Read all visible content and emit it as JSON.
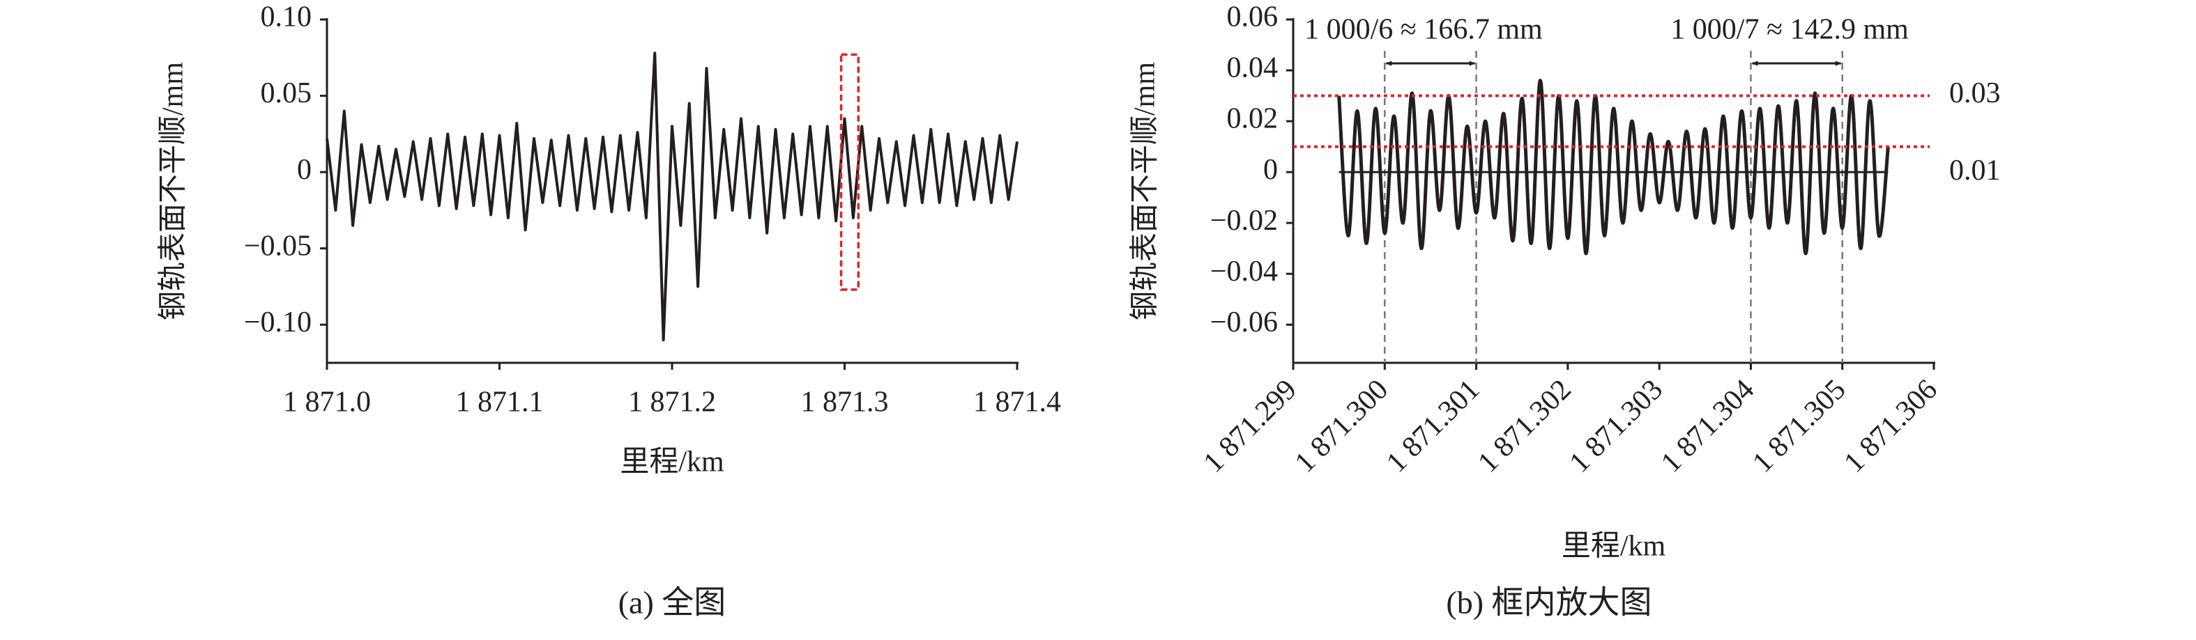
{
  "chart_data": [
    {
      "type": "line",
      "ylabel": "钢轨表面不平顺/mm",
      "xlabel": "里程/km",
      "caption": "(a) 全图",
      "color": "#231f20",
      "smooth": false,
      "xlim": [
        1871.0,
        1871.4
      ],
      "xticks": [
        {
          "value": 1871.0,
          "label": "1 871.0"
        },
        {
          "value": 1871.1,
          "label": "1 871.1"
        },
        {
          "value": 1871.2,
          "label": "1 871.2"
        },
        {
          "value": 1871.3,
          "label": "1 871.3"
        },
        {
          "value": 1871.4,
          "label": "1 871.4"
        }
      ],
      "ylim": [
        -0.125,
        0.1
      ],
      "yticks": [
        {
          "value": 0.1,
          "label": "0.10"
        },
        0.05,
        0,
        {
          "value": -0.05,
          "label": "−0.05"
        },
        {
          "value": -0.1,
          "label": "−0.10"
        }
      ],
      "highlight_box": {
        "x": [
          1871.298,
          1871.308
        ],
        "y": [
          -0.077,
          0.077
        ],
        "color": "#d9262b"
      },
      "x": [
        1871.0,
        1871.005,
        1871.01,
        1871.015,
        1871.02,
        1871.025,
        1871.03,
        1871.035,
        1871.04,
        1871.045,
        1871.05,
        1871.055,
        1871.06,
        1871.065,
        1871.07,
        1871.075,
        1871.08,
        1871.085,
        1871.09,
        1871.095,
        1871.1,
        1871.105,
        1871.11,
        1871.115,
        1871.12,
        1871.125,
        1871.13,
        1871.135,
        1871.14,
        1871.145,
        1871.15,
        1871.155,
        1871.16,
        1871.165,
        1871.17,
        1871.175,
        1871.18,
        1871.185,
        1871.19,
        1871.195,
        1871.2,
        1871.205,
        1871.21,
        1871.215,
        1871.22,
        1871.225,
        1871.23,
        1871.235,
        1871.24,
        1871.245,
        1871.25,
        1871.255,
        1871.26,
        1871.265,
        1871.27,
        1871.275,
        1871.28,
        1871.285,
        1871.29,
        1871.295,
        1871.3,
        1871.305,
        1871.31,
        1871.315,
        1871.32,
        1871.325,
        1871.33,
        1871.335,
        1871.34,
        1871.345,
        1871.35,
        1871.355,
        1871.36,
        1871.365,
        1871.37,
        1871.375,
        1871.38,
        1871.385,
        1871.39,
        1871.395,
        1871.4
      ],
      "values": [
        0.022,
        -0.025,
        0.04,
        -0.035,
        0.018,
        -0.02,
        0.017,
        -0.018,
        0.015,
        -0.016,
        0.02,
        -0.018,
        0.022,
        -0.022,
        0.025,
        -0.024,
        0.023,
        -0.022,
        0.025,
        -0.028,
        0.024,
        -0.03,
        0.032,
        -0.038,
        0.022,
        -0.02,
        0.021,
        -0.022,
        0.024,
        -0.025,
        0.022,
        -0.024,
        0.023,
        -0.026,
        0.024,
        -0.025,
        0.026,
        -0.03,
        0.078,
        -0.11,
        0.03,
        -0.035,
        0.045,
        -0.075,
        0.068,
        -0.03,
        0.028,
        -0.025,
        0.035,
        -0.03,
        0.03,
        -0.04,
        0.028,
        -0.03,
        0.025,
        -0.028,
        0.03,
        -0.03,
        0.03,
        -0.032,
        0.035,
        -0.03,
        0.03,
        -0.025,
        0.022,
        -0.02,
        0.02,
        -0.022,
        0.024,
        -0.02,
        0.028,
        -0.02,
        0.025,
        -0.022,
        0.02,
        -0.018,
        0.022,
        -0.02,
        0.024,
        -0.018,
        0.02
      ]
    },
    {
      "type": "line",
      "ylabel": "钢轨表面不平顺/mm",
      "xlabel": "里程/km",
      "caption": "(b) 框内放大图",
      "color": "#231f20",
      "smooth": true,
      "xtick_rotation": -45,
      "xlim": [
        1871.299,
        1871.306
      ],
      "xticks": [
        {
          "value": 1871.299,
          "label": "1 871.299"
        },
        {
          "value": 1871.3,
          "label": "1 871.300"
        },
        {
          "value": 1871.301,
          "label": "1 871.301"
        },
        {
          "value": 1871.302,
          "label": "1 871.302"
        },
        {
          "value": 1871.303,
          "label": "1 871.303"
        },
        {
          "value": 1871.304,
          "label": "1 871.304"
        },
        {
          "value": 1871.305,
          "label": "1 871.305"
        },
        {
          "value": 1871.306,
          "label": "1 871.306"
        }
      ],
      "ylim": [
        -0.075,
        0.06
      ],
      "yticks": [
        0.06,
        0.04,
        0.02,
        0,
        {
          "value": -0.02,
          "label": "−0.02"
        },
        {
          "value": -0.04,
          "label": "−0.04"
        },
        {
          "value": -0.06,
          "label": "−0.06"
        }
      ],
      "hlines": [
        0.03,
        0.01
      ],
      "hline_color": "#d9262b",
      "vlines": [
        1871.3,
        1871.301,
        1871.304,
        1871.305
      ],
      "annotations": [
        {
          "text": "1 000/6 ≈ 166.7 mm",
          "x": [
            1871.3,
            1871.301
          ]
        },
        {
          "text": "1 000/7 ≈ 142.9 mm",
          "x": [
            1871.304,
            1871.305
          ]
        }
      ],
      "x": [
        1871.2995,
        1871.2996,
        1871.2997,
        1871.2998,
        1871.2999,
        1871.3,
        1871.3001,
        1871.3002,
        1871.3003,
        1871.3004,
        1871.3005,
        1871.3006,
        1871.3007,
        1871.3008,
        1871.3009,
        1871.301,
        1871.3011,
        1871.3012,
        1871.3013,
        1871.3014,
        1871.3015,
        1871.3016,
        1871.3017,
        1871.3018,
        1871.3019,
        1871.302,
        1871.3021,
        1871.3022,
        1871.3023,
        1871.3024,
        1871.3025,
        1871.3026,
        1871.3027,
        1871.3028,
        1871.3029,
        1871.303,
        1871.3031,
        1871.3032,
        1871.3033,
        1871.3034,
        1871.3035,
        1871.3036,
        1871.3037,
        1871.3038,
        1871.3039,
        1871.304,
        1871.3041,
        1871.3042,
        1871.3043,
        1871.3044,
        1871.3045,
        1871.3046,
        1871.3047,
        1871.3048,
        1871.3049,
        1871.305,
        1871.3051,
        1871.3052,
        1871.3053,
        1871.3054,
        1871.3055
      ],
      "values": [
        0.03,
        -0.025,
        0.024,
        -0.028,
        0.025,
        -0.024,
        0.022,
        -0.02,
        0.031,
        -0.03,
        0.024,
        -0.015,
        0.03,
        -0.022,
        0.018,
        -0.016,
        0.02,
        -0.018,
        0.023,
        -0.027,
        0.029,
        -0.028,
        0.036,
        -0.03,
        0.03,
        -0.026,
        0.028,
        -0.032,
        0.03,
        -0.025,
        0.025,
        -0.02,
        0.02,
        -0.015,
        0.015,
        -0.012,
        0.012,
        -0.015,
        0.016,
        -0.018,
        0.017,
        -0.02,
        0.022,
        -0.022,
        0.024,
        -0.018,
        0.025,
        -0.022,
        0.026,
        -0.02,
        0.028,
        -0.032,
        0.031,
        -0.024,
        0.025,
        -0.022,
        0.03,
        -0.03,
        0.028,
        -0.025,
        0.01
      ]
    }
  ]
}
